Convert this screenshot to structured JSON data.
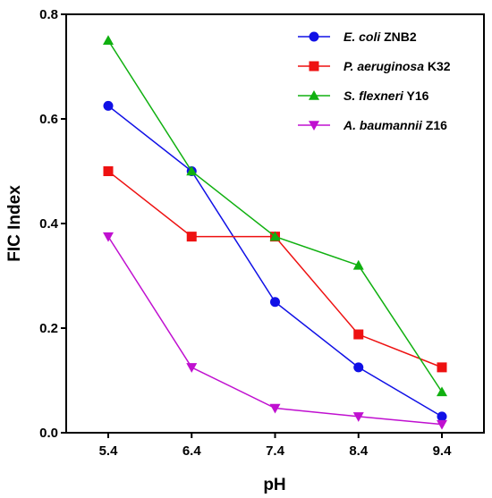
{
  "chart_data": {
    "type": "line",
    "xlabel": "pH",
    "ylabel": "FIC Index",
    "x": [
      "5.4",
      "6.4",
      "7.4",
      "8.4",
      "9.4"
    ],
    "ylim": [
      0,
      0.8
    ],
    "yticks": [
      "0.0",
      "0.2",
      "0.4",
      "0.6",
      "0.8"
    ],
    "grid": false,
    "legend_position": "top-right",
    "series": [
      {
        "name": "E. coli ZNB2",
        "name_italic": "E. coli",
        "name_plain": " ZNB2",
        "marker": "circle",
        "color": "#1010e6",
        "values": [
          0.625,
          0.5,
          0.25,
          0.125,
          0.031
        ]
      },
      {
        "name": "P. aeruginosa K32",
        "name_italic": "P. aeruginosa",
        "name_plain": " K32",
        "marker": "square",
        "color": "#ee1111",
        "values": [
          0.5,
          0.375,
          0.375,
          0.188,
          0.125
        ]
      },
      {
        "name": "S. flexneri Y16",
        "name_italic": "S. flexneri",
        "name_plain": " Y16",
        "marker": "triangle-up",
        "color": "#10b010",
        "values": [
          0.75,
          0.5,
          0.375,
          0.32,
          0.078
        ]
      },
      {
        "name": "A. baumannii Z16",
        "name_italic": "A. baumannii",
        "name_plain": " Z16",
        "marker": "triangle-down",
        "color": "#c010d0",
        "values": [
          0.375,
          0.125,
          0.047,
          0.031,
          0.016
        ]
      }
    ]
  }
}
